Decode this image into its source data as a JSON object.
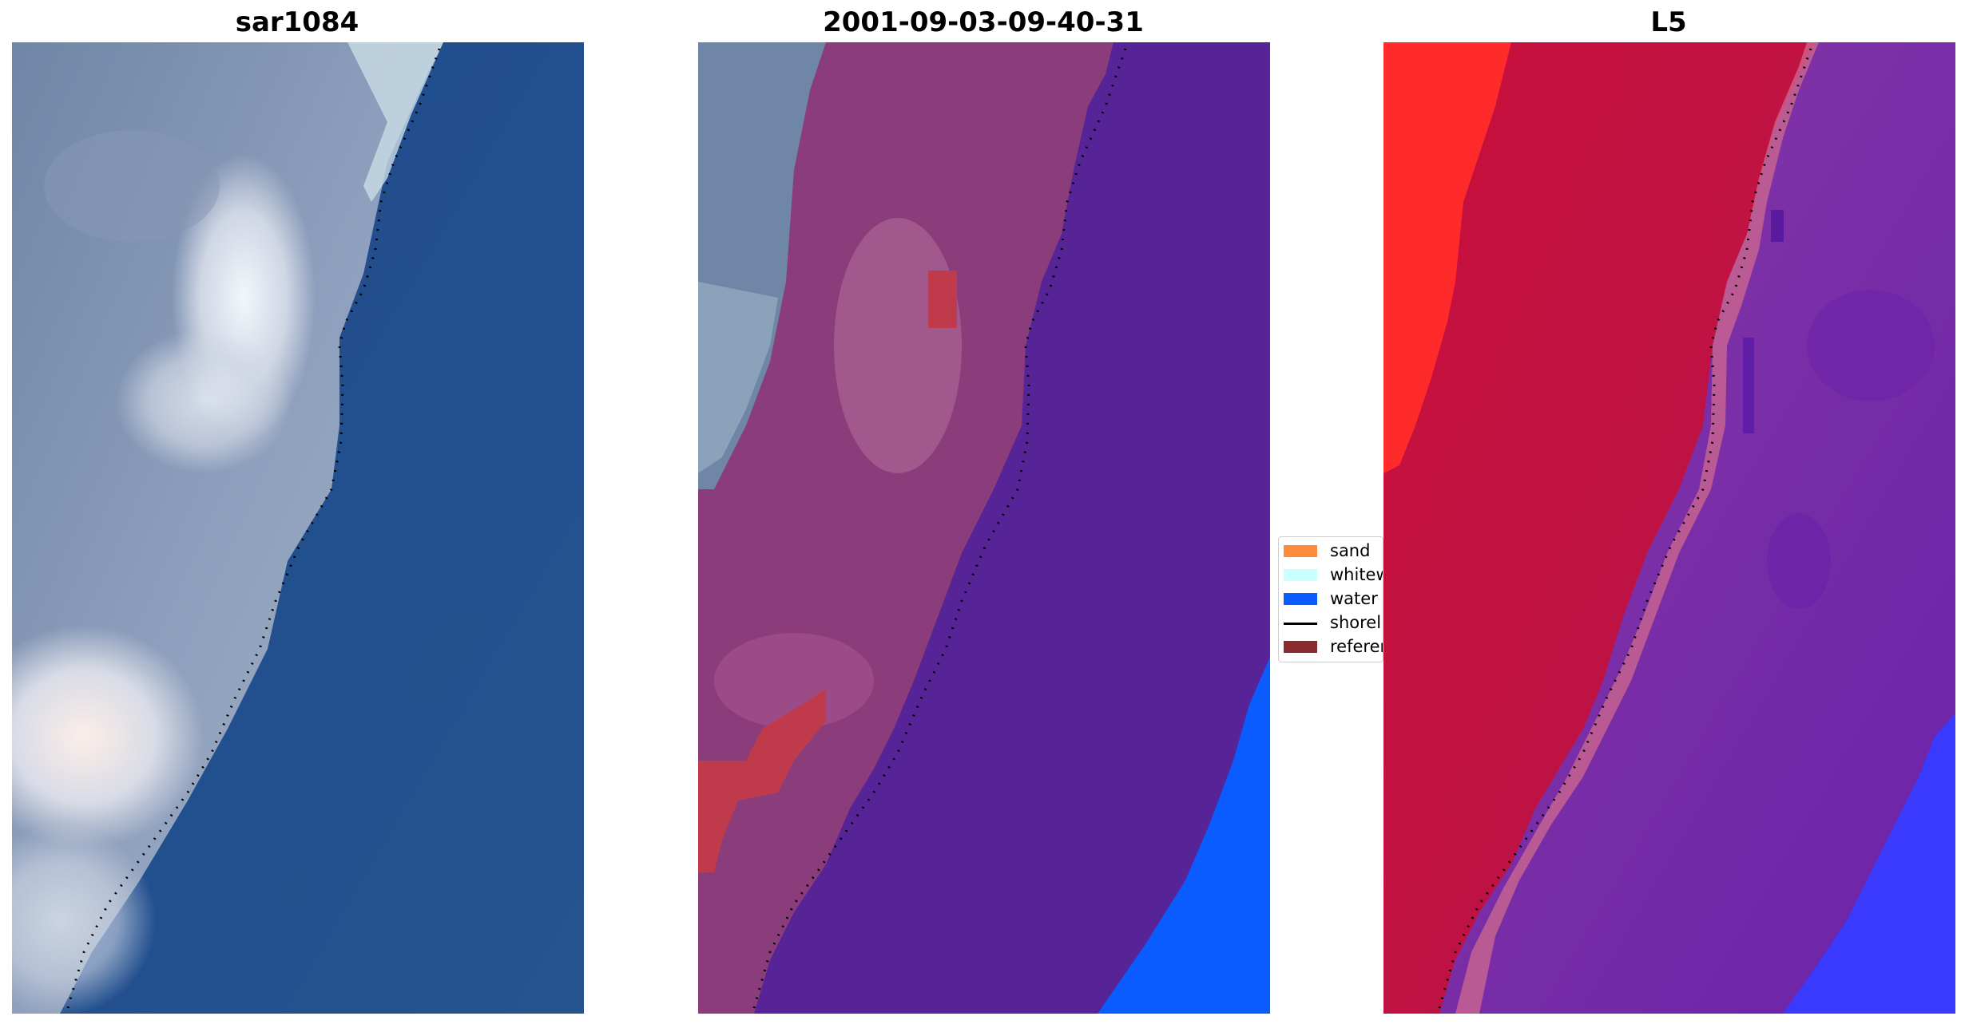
{
  "panels": [
    {
      "title": "sar1084"
    },
    {
      "title": "2001-09-03-09-40-31"
    },
    {
      "title": "L5"
    }
  ],
  "legend": {
    "items": [
      {
        "label": "sand",
        "color": "#ff8c3a",
        "kind": "patch"
      },
      {
        "label": "whitew",
        "color": "#c8ffff",
        "kind": "patch"
      },
      {
        "label": "water",
        "color": "#0a5cff",
        "kind": "patch"
      },
      {
        "label": "shorel",
        "color": "#000000",
        "kind": "line"
      },
      {
        "label": "referen",
        "color": "#8b2a2f",
        "kind": "patch"
      }
    ]
  },
  "colors": {
    "sea_rgb": "#22508f",
    "cloud_rgb": "#d9dde8",
    "land_class": "#8a3d7a",
    "sea_class": "#562497",
    "water_class": "#0a5cff",
    "reference_class": "#bf3a4a",
    "land_prob": "#c0103a",
    "high_land_prob": "#ff2a2a",
    "sea_prob": "#7a2a9e",
    "water_prob": "#3a3aff"
  }
}
